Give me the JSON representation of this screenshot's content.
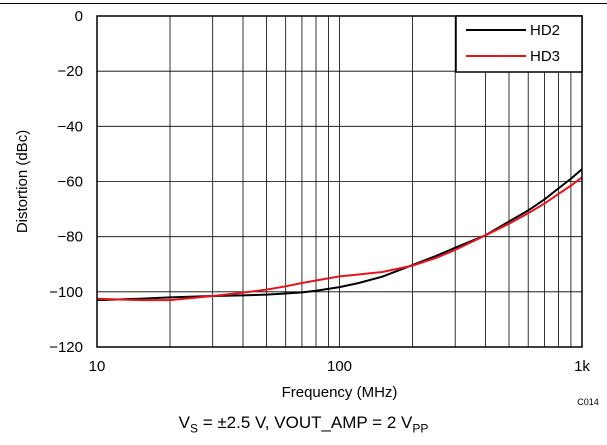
{
  "chart_data": {
    "type": "line",
    "xscale": "log",
    "xlim": [
      10,
      1000
    ],
    "ylim": [
      -120,
      0
    ],
    "grid": true,
    "legend_position": "top-right",
    "xlabel": "Frequency (MHz)",
    "ylabel": "Distortion (dBc)",
    "code": "C014",
    "x_ticks": [
      {
        "value": 10,
        "label": "10"
      },
      {
        "value": 100,
        "label": "100"
      },
      {
        "value": 1000,
        "label": "1k"
      }
    ],
    "y_ticks": [
      {
        "value": 0,
        "label": "0"
      },
      {
        "value": -20,
        "label": "−20"
      },
      {
        "value": -40,
        "label": "−40"
      },
      {
        "value": -60,
        "label": "−60"
      },
      {
        "value": -80,
        "label": "−80"
      },
      {
        "value": -100,
        "label": "−100"
      },
      {
        "value": -120,
        "label": "−120"
      }
    ],
    "series": [
      {
        "name": "HD2",
        "color": "#000000",
        "x": [
          10,
          15,
          20,
          30,
          40,
          50,
          60,
          70,
          80,
          100,
          120,
          150,
          200,
          250,
          300,
          400,
          500,
          600,
          700,
          800,
          900,
          1000
        ],
        "y": [
          -103,
          -102.5,
          -102,
          -101.5,
          -101.3,
          -101,
          -100.6,
          -100.2,
          -99.6,
          -98.3,
          -96.8,
          -94.5,
          -90.3,
          -87,
          -84,
          -79.5,
          -74.5,
          -70.5,
          -66.5,
          -62.5,
          -59,
          -55.5
        ]
      },
      {
        "name": "HD3",
        "color": "#e8141c",
        "x": [
          10,
          15,
          20,
          30,
          40,
          50,
          60,
          70,
          80,
          100,
          120,
          150,
          200,
          250,
          300,
          400,
          500,
          600,
          700,
          800,
          900,
          1000
        ],
        "y": [
          -102.5,
          -103,
          -103,
          -101.5,
          -100.3,
          -99.2,
          -98,
          -96.8,
          -95.9,
          -94.4,
          -93.7,
          -92.8,
          -90.5,
          -87.7,
          -84.8,
          -79.5,
          -75.3,
          -71.5,
          -68,
          -64.5,
          -61.5,
          -58.5
        ]
      }
    ]
  },
  "caption": {
    "vs_main": "V",
    "vs_sub": "S",
    "vs_value": " = ±2.5 V, VOUT_AMP = 2 V",
    "vpp_sub": "PP"
  }
}
